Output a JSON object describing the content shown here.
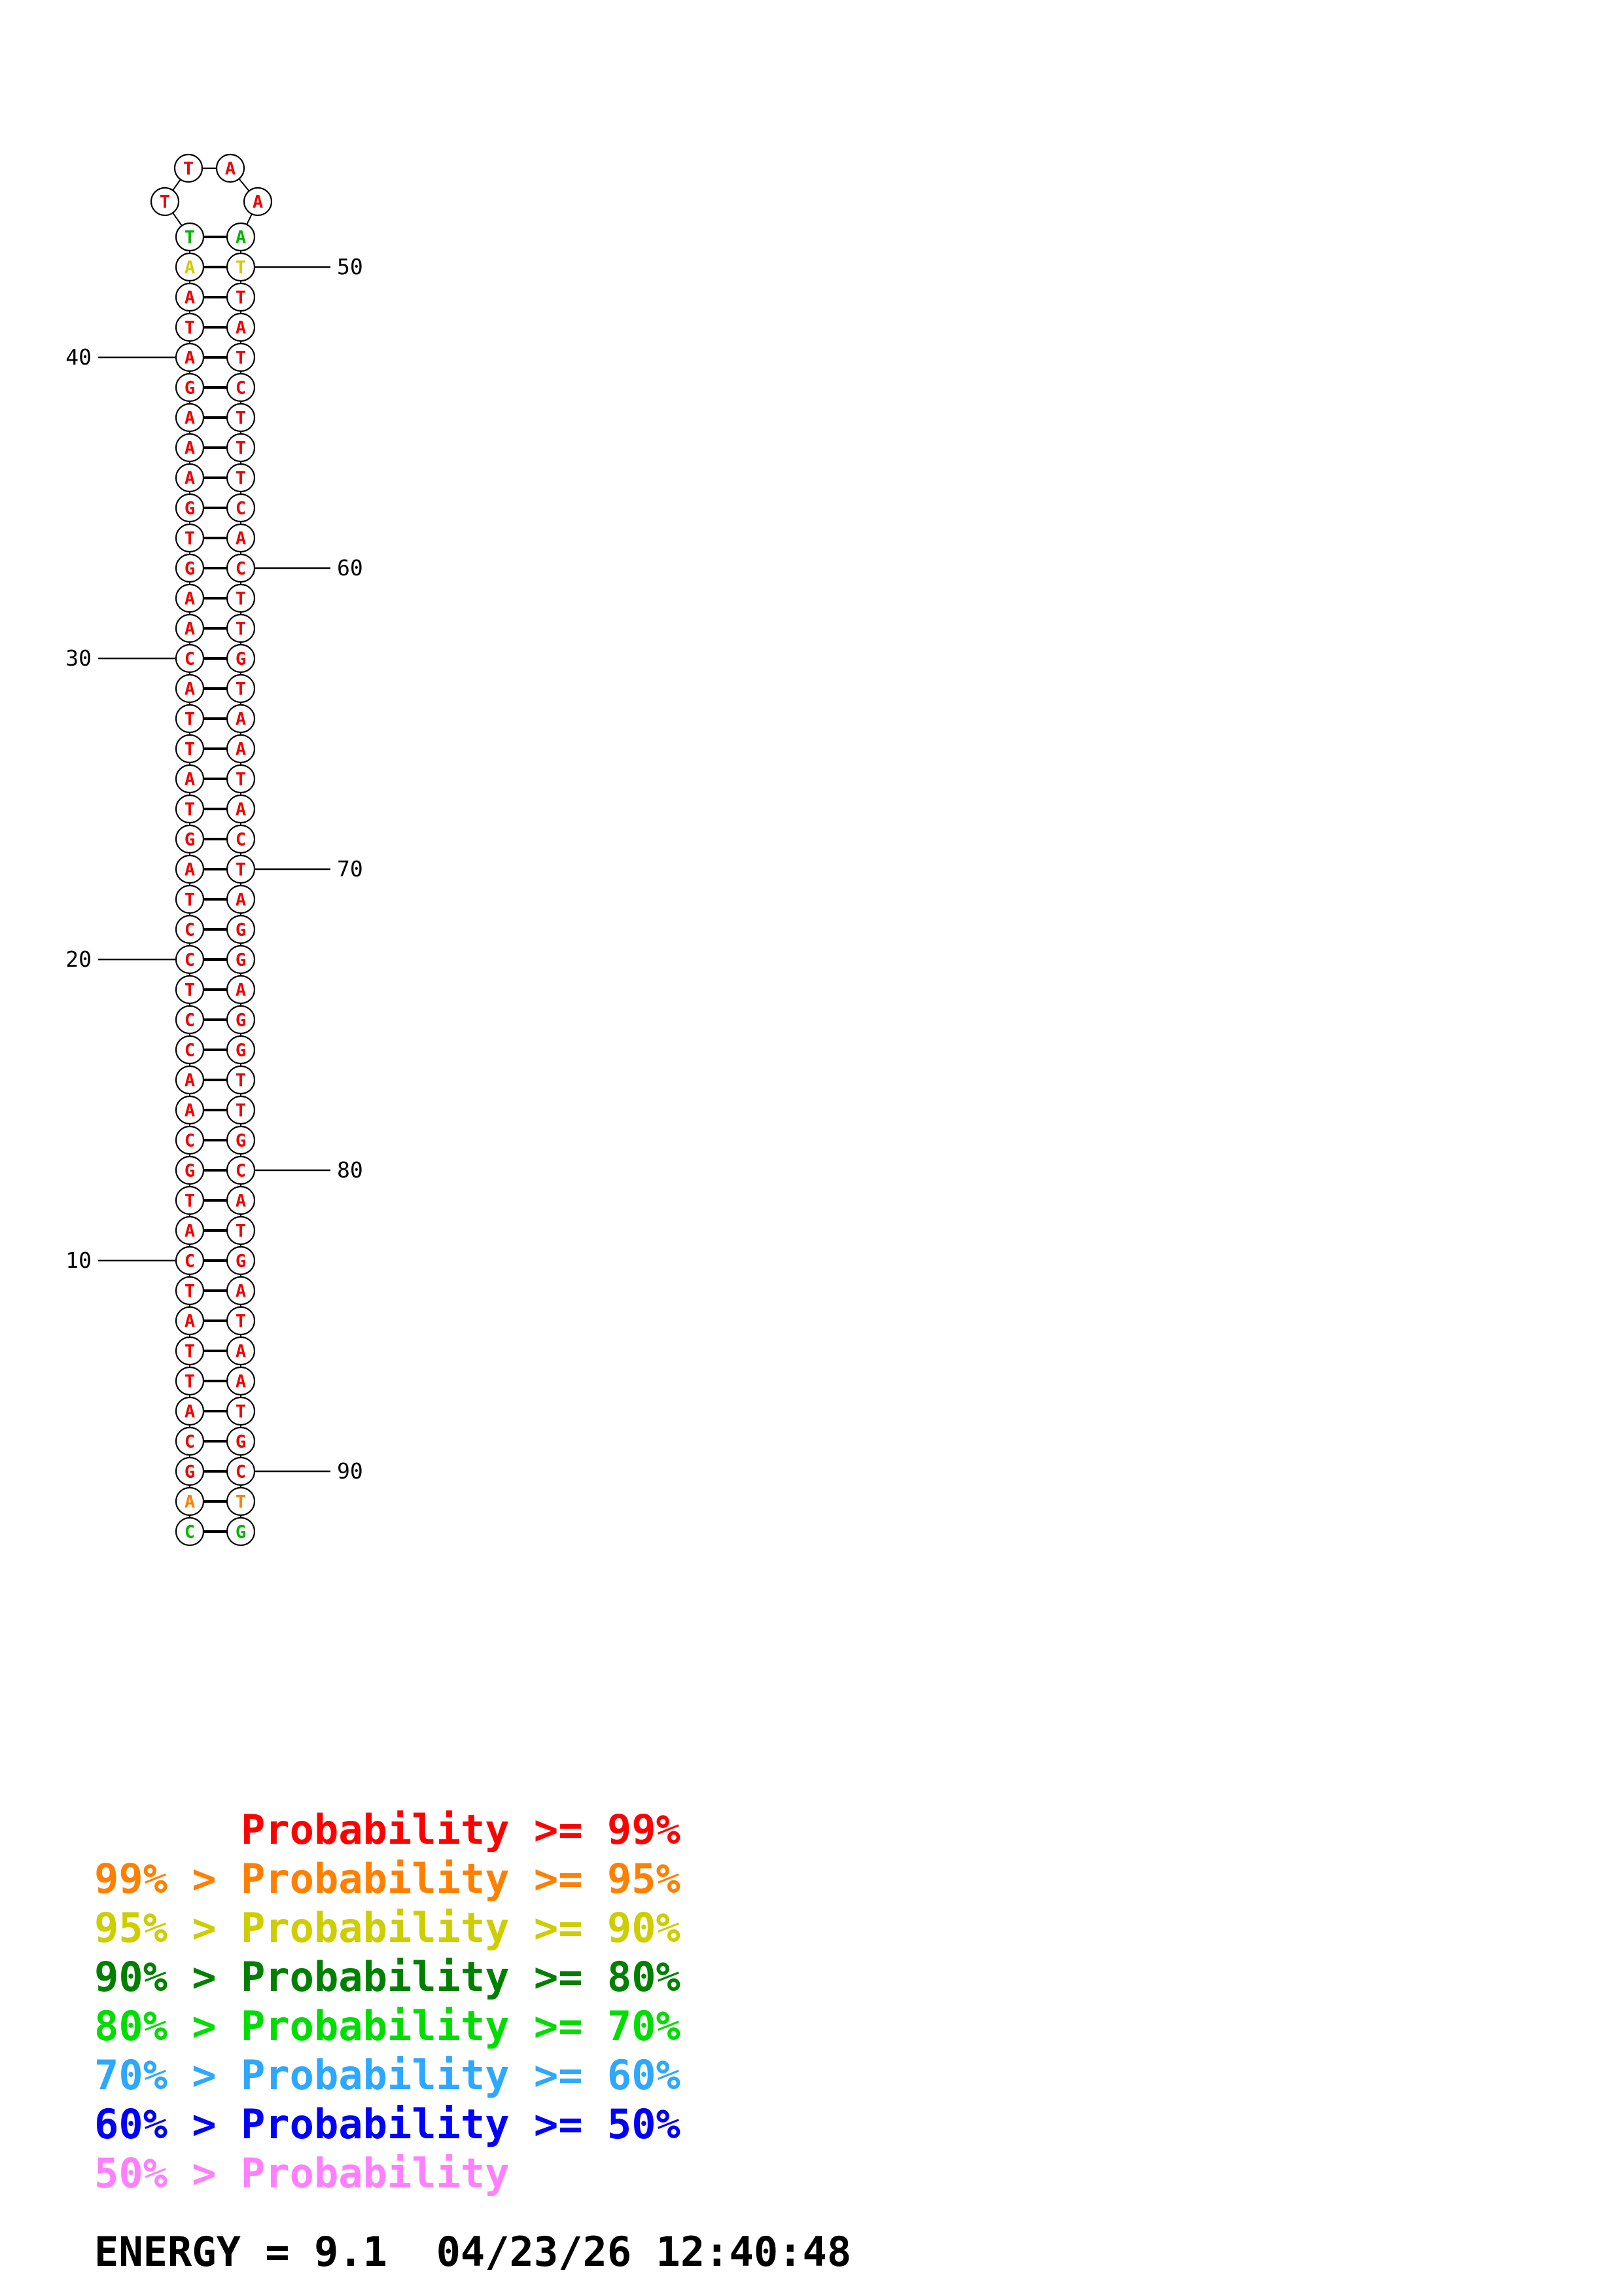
{
  "palette": {
    "red": "#F00000",
    "orange": "#FF8000",
    "yellow": "#CDCD00",
    "green": "#00B400",
    "black": "#000000"
  },
  "structure": {
    "description": "DNA hairpin secondary-structure plot colored by base-pair probability",
    "left": [
      [
        "T",
        "green"
      ],
      [
        "A",
        "yellow"
      ],
      [
        "A",
        "red"
      ],
      [
        "T",
        "red"
      ],
      [
        "A",
        "red"
      ],
      [
        "G",
        "red"
      ],
      [
        "A",
        "red"
      ],
      [
        "A",
        "red"
      ],
      [
        "A",
        "red"
      ],
      [
        "G",
        "red"
      ],
      [
        "T",
        "red"
      ],
      [
        "G",
        "red"
      ],
      [
        "A",
        "red"
      ],
      [
        "A",
        "red"
      ],
      [
        "C",
        "red"
      ],
      [
        "A",
        "red"
      ],
      [
        "T",
        "red"
      ],
      [
        "T",
        "red"
      ],
      [
        "A",
        "red"
      ],
      [
        "T",
        "red"
      ],
      [
        "G",
        "red"
      ],
      [
        "A",
        "red"
      ],
      [
        "T",
        "red"
      ],
      [
        "C",
        "red"
      ],
      [
        "C",
        "red"
      ],
      [
        "T",
        "red"
      ],
      [
        "C",
        "red"
      ],
      [
        "C",
        "red"
      ],
      [
        "A",
        "red"
      ],
      [
        "A",
        "red"
      ],
      [
        "C",
        "red"
      ],
      [
        "G",
        "red"
      ],
      [
        "T",
        "red"
      ],
      [
        "A",
        "red"
      ],
      [
        "C",
        "red"
      ],
      [
        "T",
        "red"
      ],
      [
        "A",
        "red"
      ],
      [
        "T",
        "red"
      ],
      [
        "T",
        "red"
      ],
      [
        "A",
        "red"
      ],
      [
        "C",
        "red"
      ],
      [
        "G",
        "red"
      ],
      [
        "A",
        "orange"
      ],
      [
        "C",
        "green"
      ]
    ],
    "right": [
      [
        "A",
        "green"
      ],
      [
        "T",
        "yellow"
      ],
      [
        "T",
        "red"
      ],
      [
        "A",
        "red"
      ],
      [
        "T",
        "red"
      ],
      [
        "C",
        "red"
      ],
      [
        "T",
        "red"
      ],
      [
        "T",
        "red"
      ],
      [
        "T",
        "red"
      ],
      [
        "C",
        "red"
      ],
      [
        "A",
        "red"
      ],
      [
        "C",
        "red"
      ],
      [
        "T",
        "red"
      ],
      [
        "T",
        "red"
      ],
      [
        "G",
        "red"
      ],
      [
        "T",
        "red"
      ],
      [
        "A",
        "red"
      ],
      [
        "A",
        "red"
      ],
      [
        "T",
        "red"
      ],
      [
        "A",
        "red"
      ],
      [
        "C",
        "red"
      ],
      [
        "T",
        "red"
      ],
      [
        "A",
        "red"
      ],
      [
        "G",
        "red"
      ],
      [
        "G",
        "red"
      ],
      [
        "A",
        "red"
      ],
      [
        "G",
        "red"
      ],
      [
        "G",
        "red"
      ],
      [
        "T",
        "red"
      ],
      [
        "T",
        "red"
      ],
      [
        "G",
        "red"
      ],
      [
        "C",
        "red"
      ],
      [
        "A",
        "red"
      ],
      [
        "T",
        "red"
      ],
      [
        "G",
        "red"
      ],
      [
        "A",
        "red"
      ],
      [
        "T",
        "red"
      ],
      [
        "A",
        "red"
      ],
      [
        "A",
        "red"
      ],
      [
        "T",
        "red"
      ],
      [
        "G",
        "red"
      ],
      [
        "C",
        "red"
      ],
      [
        "T",
        "orange"
      ],
      [
        "G",
        "green"
      ]
    ],
    "loop": [
      [
        "T",
        "red"
      ],
      [
        "T",
        "red"
      ],
      [
        "A",
        "red"
      ],
      [
        "A",
        "red"
      ]
    ],
    "labels_left": [
      {
        "text": "40",
        "index": 4
      },
      {
        "text": "30",
        "index": 14
      },
      {
        "text": "20",
        "index": 24
      },
      {
        "text": "10",
        "index": 34
      }
    ],
    "labels_right": [
      {
        "text": "50",
        "index": 1
      },
      {
        "text": "60",
        "index": 11
      },
      {
        "text": "70",
        "index": 21
      },
      {
        "text": "80",
        "index": 31
      },
      {
        "text": "90",
        "index": 41
      }
    ]
  },
  "legend": {
    "rows": [
      {
        "text": "      Probability >= 99%",
        "color": "#FF0000"
      },
      {
        "text": "99% > Probability >= 95%",
        "color": "#FF8000"
      },
      {
        "text": "95% > Probability >= 90%",
        "color": "#CDCD00"
      },
      {
        "text": "90% > Probability >= 80%",
        "color": "#008000"
      },
      {
        "text": "80% > Probability >= 70%",
        "color": "#00DD00"
      },
      {
        "text": "70% > Probability >= 60%",
        "color": "#2EA8FF"
      },
      {
        "text": "60% > Probability >= 50%",
        "color": "#0000FF"
      },
      {
        "text": "50% > Probability",
        "color": "#FF80FF"
      }
    ]
  },
  "footer": {
    "energy_line": "ENERGY = 9.1  04/23/26 12:40:48"
  }
}
